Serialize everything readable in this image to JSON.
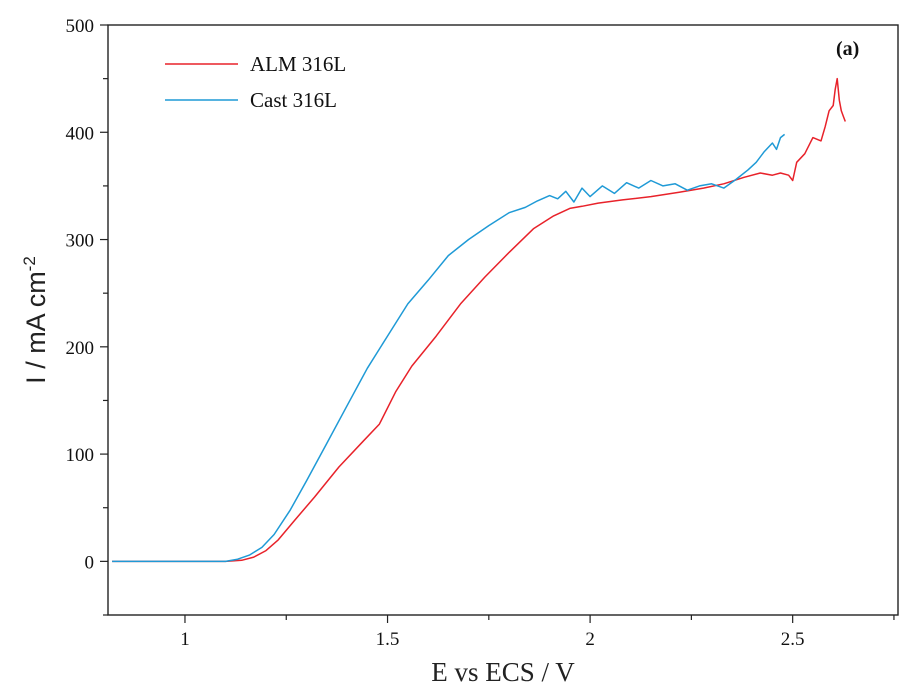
{
  "chart_data": {
    "type": "line",
    "panel_label": "(a)",
    "xlabel": "E vs ECS / V",
    "ylabel": "I / mA cm",
    "ylabel_superscript": "-2",
    "xlim": [
      0.81,
      2.76
    ],
    "ylim": [
      -50,
      500
    ],
    "x_ticks": [
      1,
      1.5,
      2,
      2.5
    ],
    "x_tick_labels": [
      "1",
      "1.5",
      "2",
      "2.5"
    ],
    "y_ticks": [
      0,
      100,
      200,
      300,
      400,
      500
    ],
    "y_tick_labels": [
      "0",
      "100",
      "200",
      "300",
      "400",
      "500"
    ],
    "grid": false,
    "legend_position": "top-left",
    "series": [
      {
        "name": "ALM 316L",
        "color": "#e8222a",
        "x": [
          0.82,
          1.0,
          1.1,
          1.14,
          1.17,
          1.2,
          1.23,
          1.27,
          1.32,
          1.38,
          1.44,
          1.48,
          1.52,
          1.56,
          1.62,
          1.68,
          1.74,
          1.8,
          1.86,
          1.91,
          1.95,
          1.98,
          2.02,
          2.08,
          2.15,
          2.22,
          2.28,
          2.33,
          2.38,
          2.42,
          2.45,
          2.47,
          2.49,
          2.5,
          2.51,
          2.53,
          2.55,
          2.57,
          2.58,
          2.59,
          2.6,
          2.605,
          2.61,
          2.615,
          2.62,
          2.625,
          2.63
        ],
        "y": [
          0,
          0,
          0,
          1,
          4,
          10,
          20,
          38,
          60,
          88,
          112,
          128,
          158,
          182,
          210,
          240,
          265,
          288,
          310,
          322,
          329,
          331,
          334,
          337,
          340,
          344,
          348,
          352,
          358,
          362,
          360,
          362,
          360,
          355,
          372,
          380,
          395,
          392,
          405,
          420,
          425,
          440,
          450,
          430,
          420,
          415,
          410
        ]
      },
      {
        "name": "Cast 316L",
        "color": "#1f9ad6",
        "x": [
          0.82,
          1.0,
          1.1,
          1.13,
          1.16,
          1.19,
          1.22,
          1.26,
          1.3,
          1.35,
          1.4,
          1.45,
          1.5,
          1.55,
          1.6,
          1.65,
          1.7,
          1.75,
          1.8,
          1.84,
          1.87,
          1.9,
          1.92,
          1.94,
          1.96,
          1.98,
          2.0,
          2.03,
          2.06,
          2.09,
          2.12,
          2.15,
          2.18,
          2.21,
          2.24,
          2.27,
          2.3,
          2.33,
          2.36,
          2.39,
          2.41,
          2.43,
          2.45,
          2.46,
          2.47,
          2.48
        ],
        "y": [
          0,
          0,
          0,
          2,
          6,
          13,
          25,
          48,
          75,
          110,
          145,
          180,
          210,
          240,
          262,
          285,
          300,
          313,
          325,
          330,
          336,
          341,
          338,
          345,
          335,
          348,
          340,
          350,
          343,
          353,
          348,
          355,
          350,
          352,
          346,
          350,
          352,
          348,
          356,
          365,
          372,
          382,
          390,
          384,
          395,
          398
        ]
      }
    ]
  }
}
